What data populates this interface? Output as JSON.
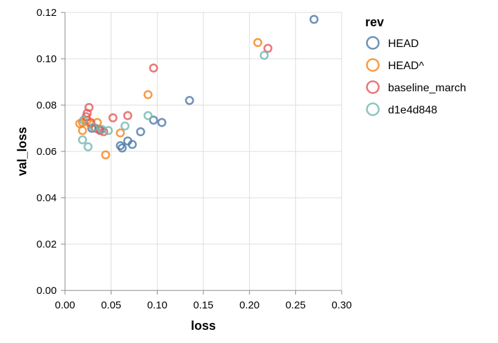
{
  "chart_data": {
    "type": "scatter",
    "xlabel": "loss",
    "ylabel": "val_loss",
    "xlim": [
      0,
      0.3
    ],
    "ylim": [
      0,
      0.12
    ],
    "x_ticks": [
      "0.00",
      "0.05",
      "0.10",
      "0.15",
      "0.20",
      "0.25",
      "0.30"
    ],
    "y_ticks": [
      "0.00",
      "0.02",
      "0.04",
      "0.06",
      "0.08",
      "0.10",
      "0.12"
    ],
    "grid": true,
    "legend": {
      "title": "rev",
      "position": "right"
    },
    "series": [
      {
        "name": "HEAD",
        "color": "#4c78a8",
        "points": [
          [
            0.27,
            0.117
          ],
          [
            0.135,
            0.082
          ],
          [
            0.105,
            0.0725
          ],
          [
            0.096,
            0.0735
          ],
          [
            0.082,
            0.0685
          ],
          [
            0.068,
            0.0645
          ],
          [
            0.073,
            0.063
          ],
          [
            0.06,
            0.0625
          ],
          [
            0.062,
            0.0615
          ],
          [
            0.037,
            0.0695
          ],
          [
            0.029,
            0.07
          ]
        ]
      },
      {
        "name": "HEAD^",
        "color": "#f58518",
        "points": [
          [
            0.209,
            0.107
          ],
          [
            0.09,
            0.0845
          ],
          [
            0.06,
            0.068
          ],
          [
            0.044,
            0.0585
          ],
          [
            0.035,
            0.0725
          ],
          [
            0.027,
            0.072
          ],
          [
            0.024,
            0.0735
          ],
          [
            0.019,
            0.0725
          ],
          [
            0.016,
            0.072
          ],
          [
            0.019,
            0.069
          ]
        ]
      },
      {
        "name": "baseline_march",
        "color": "#e45756",
        "points": [
          [
            0.22,
            0.1045
          ],
          [
            0.096,
            0.096
          ],
          [
            0.068,
            0.0755
          ],
          [
            0.052,
            0.0745
          ],
          [
            0.026,
            0.079
          ],
          [
            0.024,
            0.0765
          ],
          [
            0.023,
            0.075
          ],
          [
            0.028,
            0.0725
          ],
          [
            0.033,
            0.07
          ],
          [
            0.038,
            0.069
          ],
          [
            0.042,
            0.0685
          ]
        ]
      },
      {
        "name": "d1e4d848",
        "color": "#72b7b2",
        "points": [
          [
            0.216,
            0.1015
          ],
          [
            0.09,
            0.0755
          ],
          [
            0.065,
            0.071
          ],
          [
            0.047,
            0.069
          ],
          [
            0.04,
            0.0695
          ],
          [
            0.031,
            0.0705
          ],
          [
            0.02,
            0.0735
          ],
          [
            0.019,
            0.065
          ],
          [
            0.025,
            0.062
          ]
        ]
      }
    ]
  }
}
